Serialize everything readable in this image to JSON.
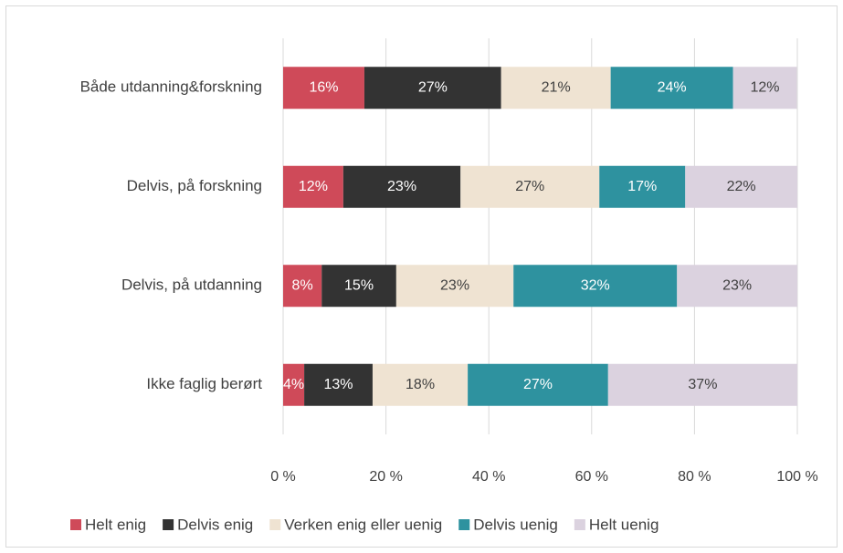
{
  "chart_data": {
    "type": "stacked_barh",
    "categories": [
      "Både utdanning&forskning",
      "Delvis, på forskning",
      "Delvis, på utdanning",
      "Ikke faglig berørt"
    ],
    "series": [
      {
        "name": "Helt enig",
        "color": "#cf4a59",
        "values": [
          15.8,
          11.7,
          7.5,
          4.1
        ],
        "value_labels": [
          "16%",
          "12%",
          "8%",
          "4%"
        ]
      },
      {
        "name": "Delvis enig",
        "color": "#333333",
        "values": [
          26.6,
          22.8,
          14.5,
          13.3
        ],
        "value_labels": [
          "27%",
          "23%",
          "15%",
          "13%"
        ]
      },
      {
        "name": "Verken enig eller uenig",
        "color": "#efe3d2",
        "values": [
          21.3,
          27.0,
          22.8,
          18.5
        ],
        "value_labels": [
          "21%",
          "27%",
          "23%",
          "18%"
        ]
      },
      {
        "name": "Delvis uenig",
        "color": "#2e929f",
        "values": [
          23.8,
          16.7,
          31.8,
          27.3
        ],
        "value_labels": [
          "24%",
          "17%",
          "32%",
          "27%"
        ]
      },
      {
        "name": "Helt uenig",
        "color": "#dbd2df",
        "values": [
          12.4,
          21.8,
          23.4,
          36.8
        ],
        "value_labels": [
          "12%",
          "22%",
          "23%",
          "37%"
        ]
      }
    ],
    "xlim": [
      0,
      100
    ],
    "xticks": [
      {
        "value": 0,
        "label": "0 %"
      },
      {
        "value": 20,
        "label": "20 %"
      },
      {
        "value": 40,
        "label": "40 %"
      },
      {
        "value": 60,
        "label": "60 %"
      },
      {
        "value": 80,
        "label": "80 %"
      },
      {
        "value": 100,
        "label": "100 %"
      }
    ],
    "grid": true,
    "legend": "bottom"
  }
}
